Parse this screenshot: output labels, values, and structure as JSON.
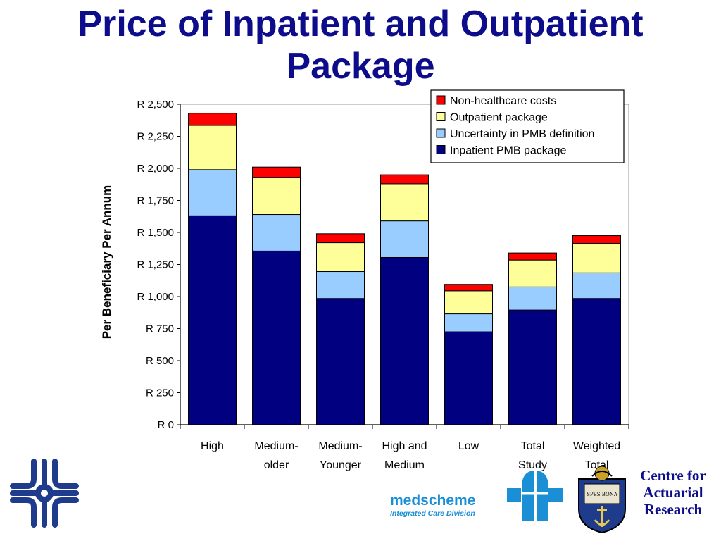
{
  "page": {
    "title_lines": [
      "Price of Inpatient and Outpatient",
      "Package"
    ]
  },
  "chart_data": {
    "type": "bar",
    "stacked": true,
    "categories": [
      [
        "High"
      ],
      [
        "Medium-",
        "older"
      ],
      [
        "Medium-",
        "Younger"
      ],
      [
        "High and",
        "Medium"
      ],
      [
        "Low"
      ],
      [
        "Total",
        "Study"
      ],
      [
        "Weighted",
        "Total"
      ]
    ],
    "series": [
      {
        "name": "Inpatient PMB package",
        "color": "#000080",
        "values": [
          1630,
          1355,
          985,
          1305,
          725,
          895,
          985
        ]
      },
      {
        "name": "Uncertainty in PMB definition",
        "color": "#99ccff",
        "values": [
          360,
          285,
          210,
          285,
          140,
          180,
          200
        ]
      },
      {
        "name": "Outpatient package",
        "color": "#ffff99",
        "values": [
          345,
          290,
          225,
          290,
          180,
          210,
          230
        ]
      },
      {
        "name": "Non-healthcare costs",
        "color": "#ff0000",
        "values": [
          95,
          80,
          70,
          70,
          50,
          55,
          60
        ]
      }
    ],
    "ylabel": "Per Beneficiary Per Annum",
    "ylim": [
      0,
      2500
    ],
    "yticks": [
      0,
      250,
      500,
      750,
      1000,
      1250,
      1500,
      1750,
      2000,
      2250,
      2500
    ],
    "ytick_labels": [
      "R 0",
      "R 250",
      "R 500",
      "R 750",
      "R 1,000",
      "R 1,250",
      "R 1,500",
      "R 1,750",
      "R 2,000",
      "R 2,250",
      "R 2,500"
    ],
    "legend_order": [
      "Non-healthcare costs",
      "Outpatient package",
      "Uncertainty in PMB definition",
      "Inpatient PMB package"
    ],
    "legend_position": "top-right",
    "grid": false
  },
  "logos": {
    "medscheme_word": "medscheme",
    "medscheme_sub": "Integrated Care Division",
    "cfar_lines": [
      "Centre for",
      "Actuarial",
      "Research"
    ],
    "crest_text": "SPES BONA",
    "brand_blue": "#1a8fd6",
    "navy": "#0d0d8c"
  }
}
